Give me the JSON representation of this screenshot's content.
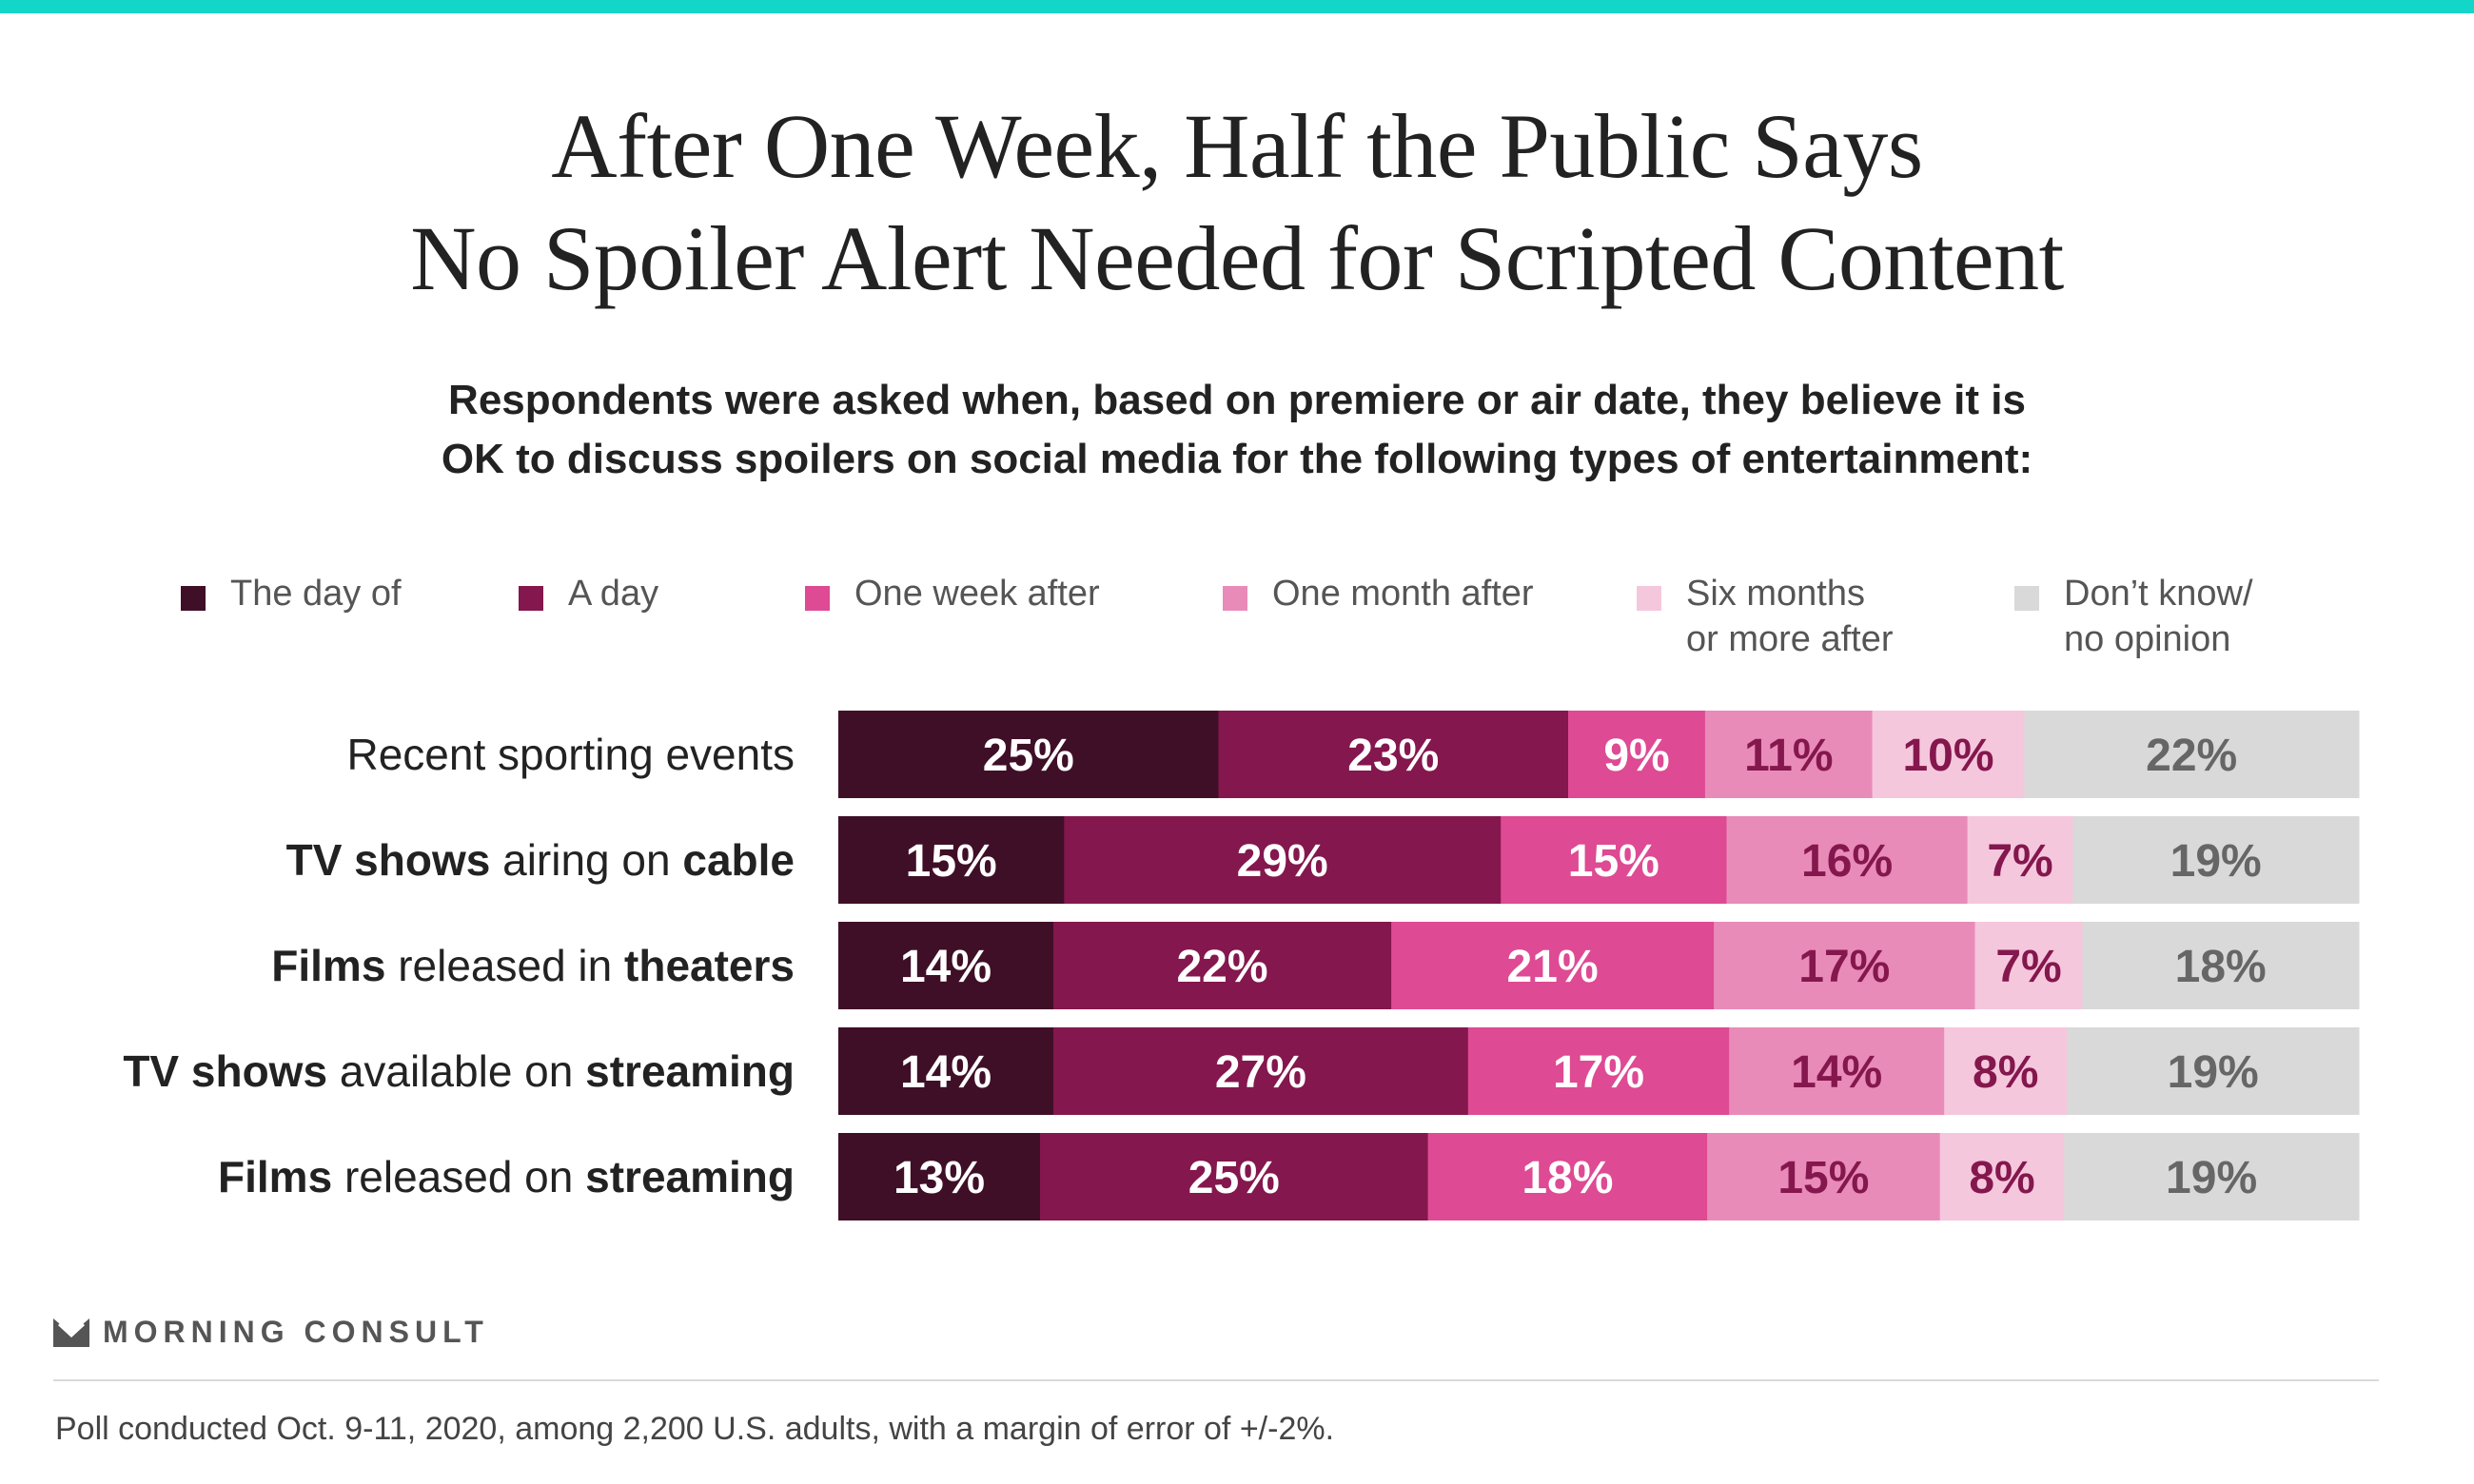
{
  "title_lines": [
    "After One Week, Half the Public Says",
    "No Spoiler Alert Needed for Scripted Content"
  ],
  "subtitle_lines": [
    "Respondents were asked when, based on premiere or air date, they believe it is",
    "OK to discuss spoilers on social media for the following types of entertainment:"
  ],
  "colors": {
    "top_bar": "#12d6c8",
    "series": [
      "#3f0f27",
      "#84174d",
      "#de4a93",
      "#e98bb9",
      "#f5c7dd",
      "#d9d9d9"
    ],
    "label_on_dark": "#ffffff",
    "label_on_light": "#84174d",
    "label_on_gray": "#666666"
  },
  "legend": [
    {
      "label": "The day of"
    },
    {
      "label": "A day"
    },
    {
      "label": "One week after"
    },
    {
      "label": "One month after"
    },
    {
      "label": "Six months\nor more after"
    },
    {
      "label": "Don’t know/\nno opinion"
    }
  ],
  "chart_data": {
    "type": "bar",
    "orientation": "horizontal",
    "stacked": true,
    "categories": [
      "Recent sporting events",
      "TV shows airing on cable",
      "Films released in theaters",
      "TV shows available on streaming",
      "Films released on streaming"
    ],
    "category_parts": [
      [
        {
          "text": "Recent sporting events",
          "bold": false
        }
      ],
      [
        {
          "text": "TV shows",
          "bold": true
        },
        {
          "text": " airing on ",
          "bold": false
        },
        {
          "text": "cable",
          "bold": true
        }
      ],
      [
        {
          "text": "Films",
          "bold": true
        },
        {
          "text": " released in ",
          "bold": false
        },
        {
          "text": "theaters",
          "bold": true
        }
      ],
      [
        {
          "text": "TV shows",
          "bold": true
        },
        {
          "text": " available on ",
          "bold": false
        },
        {
          "text": "streaming",
          "bold": true
        }
      ],
      [
        {
          "text": "Films",
          "bold": true
        },
        {
          "text": " released on ",
          "bold": false
        },
        {
          "text": "streaming",
          "bold": true
        }
      ]
    ],
    "series": [
      {
        "name": "The day of",
        "values": [
          25,
          15,
          14,
          14,
          13
        ]
      },
      {
        "name": "A day",
        "values": [
          23,
          29,
          22,
          27,
          25
        ]
      },
      {
        "name": "One week after",
        "values": [
          9,
          15,
          21,
          17,
          18
        ]
      },
      {
        "name": "One month after",
        "values": [
          11,
          16,
          17,
          14,
          15
        ]
      },
      {
        "name": "Six months or more after",
        "values": [
          10,
          7,
          7,
          8,
          8
        ]
      },
      {
        "name": "Don’t know/no opinion",
        "values": [
          22,
          19,
          18,
          19,
          19
        ]
      }
    ],
    "value_suffix": "%",
    "xlim": [
      0,
      100
    ]
  },
  "brand": "MORNING CONSULT",
  "footnote": "Poll conducted Oct. 9-11, 2020, among 2,200 U.S. adults, with a margin of error of +/-2%."
}
